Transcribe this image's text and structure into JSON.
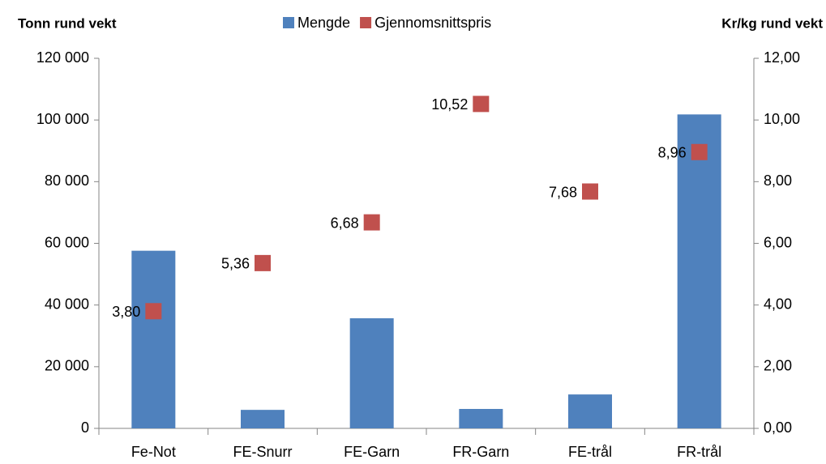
{
  "chart_data": {
    "type": "bar",
    "y_label": "Tonn rund vekt",
    "y2_label": "Kr/kg rund vekt",
    "categories": [
      "Fe-Not",
      "FE-Snurr",
      "FE-Garn",
      "FR-Garn",
      "FE-trål",
      "FR-trål"
    ],
    "series": [
      {
        "name": "Mengde",
        "type": "bar",
        "color": "#4f81bd",
        "values": [
          57600,
          6000,
          35700,
          6300,
          11000,
          101800
        ]
      },
      {
        "name": "Gjennomsnittspris",
        "type": "scatter",
        "axis": "y2",
        "color": "#c0504d",
        "values": [
          3.8,
          5.36,
          6.68,
          10.52,
          7.68,
          8.96
        ],
        "value_labels": [
          "3,80",
          "5,36",
          "6,68",
          "10,52",
          "7,68",
          "8,96"
        ]
      }
    ],
    "ylim": [
      0,
      120000
    ],
    "yticks": [
      {
        "value": 0,
        "label": "0"
      },
      {
        "value": 20000,
        "label": "20 000"
      },
      {
        "value": 40000,
        "label": "40 000"
      },
      {
        "value": 60000,
        "label": "60 000"
      },
      {
        "value": 80000,
        "label": "80 000"
      },
      {
        "value": 100000,
        "label": "100 000"
      },
      {
        "value": 120000,
        "label": "120 000"
      }
    ],
    "y2lim": [
      0,
      12
    ],
    "y2ticks": [
      {
        "value": 0,
        "label": "0,00"
      },
      {
        "value": 2,
        "label": "2,00"
      },
      {
        "value": 4,
        "label": "4,00"
      },
      {
        "value": 6,
        "label": "6,00"
      },
      {
        "value": 8,
        "label": "8,00"
      },
      {
        "value": 10,
        "label": "10,00"
      },
      {
        "value": 12,
        "label": "12,00"
      }
    ],
    "grid": false,
    "legend": "top"
  }
}
